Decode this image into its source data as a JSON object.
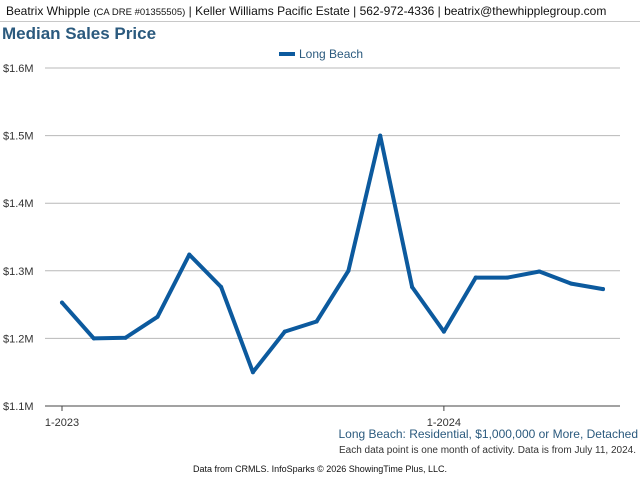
{
  "header": {
    "agent_name": "Beatrix Whipple",
    "license": "(CA DRE #01355505)",
    "rest": "| Keller Williams Pacific Estate | 562-972-4336 | beatrix@thewhipplegroup.com"
  },
  "chart_data": {
    "type": "line",
    "title": "Median Sales Price",
    "x": [
      "1-2023",
      "2-2023",
      "3-2023",
      "4-2023",
      "5-2023",
      "6-2023",
      "7-2023",
      "8-2023",
      "9-2023",
      "10-2023",
      "11-2023",
      "12-2023",
      "1-2024",
      "2-2024",
      "3-2024",
      "4-2024",
      "5-2024",
      "6-2024"
    ],
    "x_tick_labels": [
      "1-2023",
      "1-2024"
    ],
    "series": [
      {
        "name": "Long Beach",
        "color": "#0c5a9e",
        "values": [
          1.253,
          1.2,
          1.201,
          1.232,
          1.324,
          1.276,
          1.15,
          1.21,
          1.225,
          1.3,
          1.5,
          1.276,
          1.21,
          1.29,
          1.29,
          1.299,
          1.281,
          1.273
        ]
      }
    ],
    "y_tick_labels": [
      "$1.1M",
      "$1.2M",
      "$1.3M",
      "$1.4M",
      "$1.5M",
      "$1.6M"
    ],
    "y_ticks": [
      1.1,
      1.2,
      1.3,
      1.4,
      1.5,
      1.6
    ],
    "ylim": [
      1.1,
      1.6
    ],
    "grid": true,
    "legend": "top-center"
  },
  "notes": {
    "filter": "Long Beach: Residential, $1,000,000 or More, Detached",
    "activity": "Each data point is one month of activity. Data is from July 11, 2024.",
    "source": "Data from CRMLS. InfoSparks © 2026 ShowingTime Plus, LLC."
  }
}
